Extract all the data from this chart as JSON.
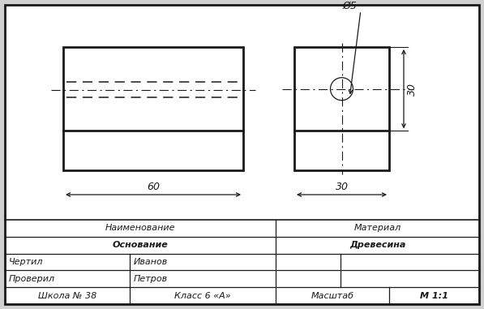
{
  "bg_color": "#d0d0d0",
  "drawing_bg": "#ffffff",
  "line_color": "#1a1a1a",
  "title_block": {
    "naimenovanie_label": "Наименование",
    "naimenovanie_value": "Основание",
    "material_label": "Материал",
    "material_value": "Древесина",
    "chertil_label": "Чертил",
    "chertil_value": "Иванов",
    "proveril_label": "Проверил",
    "proveril_value": "Петров",
    "shkola_label": "Школа № 38",
    "klass_label": "Класс 6 «А»",
    "masshtab_label": "Масштаб",
    "masshtab_value": "М 1:1"
  },
  "front_view": {
    "dim_60": "60"
  },
  "side_view": {
    "dim_30_h": "30",
    "dim_30_w": "30",
    "dim_phi5": "Ø5"
  }
}
